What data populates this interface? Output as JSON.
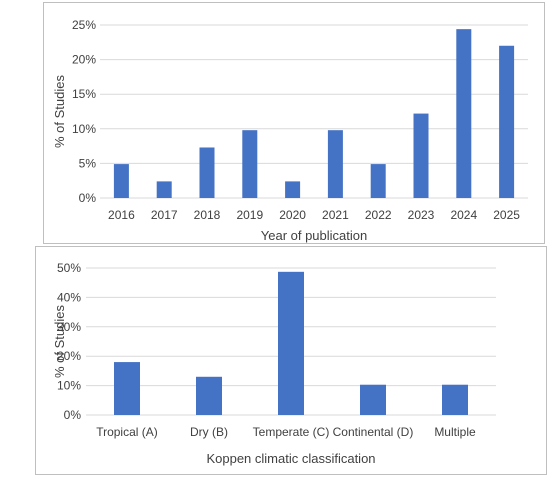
{
  "chart_data": [
    {
      "type": "bar",
      "title": "",
      "xlabel": "Year of publication",
      "ylabel": "% of Studies",
      "categories": [
        "2016",
        "2017",
        "2018",
        "2019",
        "2020",
        "2021",
        "2022",
        "2023",
        "2024",
        "2025"
      ],
      "values": [
        4.9,
        2.4,
        7.3,
        9.8,
        2.4,
        9.8,
        4.9,
        12.2,
        24.4,
        22.0
      ],
      "ylim": [
        0,
        25
      ],
      "yticks": [
        "0%",
        "5%",
        "10%",
        "15%",
        "20%",
        "25%"
      ],
      "grid": true,
      "bar_color": "#4472c4"
    },
    {
      "type": "bar",
      "title": "",
      "xlabel": "Koppen climatic classification",
      "ylabel": "% of Studies",
      "categories": [
        "Tropical (A)",
        "Dry (B)",
        "Temperate (C)",
        "Continental (D)",
        "Multiple"
      ],
      "values": [
        18.0,
        13.0,
        48.7,
        10.3,
        10.3
      ],
      "ylim": [
        0,
        50
      ],
      "yticks": [
        "0%",
        "10%",
        "20%",
        "30%",
        "40%",
        "50%"
      ],
      "grid": true,
      "bar_color": "#4472c4"
    }
  ]
}
